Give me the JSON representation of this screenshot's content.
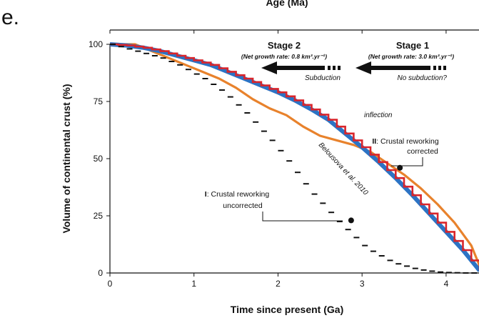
{
  "panel_label": "e.",
  "top_axis_title": "Age (Ma)",
  "chart_data": {
    "type": "line",
    "xlabel": "Time since present (Ga)",
    "ylabel": "Volume of continental crust (%)",
    "xlim": [
      0,
      4.4
    ],
    "ylim": [
      0,
      100
    ],
    "x_ticks": [
      "0",
      "1",
      "2",
      "3",
      "4"
    ],
    "y_ticks": [
      "0",
      "25",
      "50",
      "75",
      "100"
    ],
    "grid": false,
    "series": [
      {
        "name": "Belousova et al. 2010",
        "color": "#e8822c",
        "x": [
          0,
          0.3,
          0.5,
          0.7,
          0.9,
          1.1,
          1.3,
          1.5,
          1.7,
          1.9,
          2.1,
          2.3,
          2.5,
          2.7,
          2.9,
          3.1,
          3.3,
          3.5,
          3.7,
          3.9,
          4.1,
          4.3,
          4.4
        ],
        "y": [
          100,
          100,
          97,
          94,
          91,
          88,
          85,
          81,
          76,
          72,
          69,
          64,
          60,
          58,
          56,
          53,
          48,
          43,
          37,
          30,
          22,
          12,
          3
        ]
      },
      {
        "name": "II: Crustal reworking corrected",
        "color": "#2c73c4",
        "x": [
          0,
          0.2,
          0.4,
          0.6,
          0.8,
          1.0,
          1.2,
          1.4,
          1.6,
          1.8,
          2.0,
          2.2,
          2.4,
          2.6,
          2.8,
          3.0,
          3.2,
          3.4,
          3.6,
          3.8,
          4.0,
          4.2,
          4.4
        ],
        "y": [
          100,
          99.5,
          98.5,
          97,
          95,
          93,
          91,
          88,
          85,
          82,
          79,
          75.5,
          71.5,
          67,
          61,
          55,
          48.5,
          41.5,
          34,
          26,
          18,
          10,
          1
        ]
      },
      {
        "name": "I: Crustal reworking uncorrected",
        "color": "#111111",
        "x": [
          0,
          0.1,
          0.2,
          0.3,
          0.4,
          0.5,
          0.6,
          0.7,
          0.8,
          0.9,
          1.0,
          1.1,
          1.2,
          1.3,
          1.4,
          1.5,
          1.6,
          1.7,
          1.8,
          1.9,
          2.0,
          2.1,
          2.2,
          2.3,
          2.4,
          2.5,
          2.6,
          2.7,
          2.8,
          2.9,
          3.0,
          3.1,
          3.2,
          3.3,
          3.4,
          3.5,
          3.6,
          3.7,
          3.8,
          3.9,
          4.0,
          4.1,
          4.2,
          4.3,
          4.4
        ],
        "y": [
          100,
          99,
          98,
          97,
          96,
          95,
          94,
          92.5,
          91,
          89,
          87,
          85,
          82.5,
          80,
          77,
          73.5,
          70,
          66,
          62,
          58,
          53.5,
          49,
          44,
          39,
          34.5,
          30.5,
          26.5,
          22.5,
          19,
          15.5,
          12,
          9.5,
          7.5,
          5.5,
          4,
          3,
          2,
          1.3,
          0.8,
          0.4,
          0.2,
          0.1,
          0,
          0,
          0
        ]
      }
    ],
    "annotations": {
      "stage2_title": "Stage 2",
      "stage2_rate": "(Net growth rate: 0.8 km³.yr⁻¹)",
      "stage2_note": "Subduction",
      "stage1_title": "Stage 1",
      "stage1_rate": "(Net growth rate: 3.0 km³.yr⁻¹)",
      "stage1_note": "No subduction?",
      "inflection": "inflection",
      "label_II_num": "II",
      "label_II_line1": ": Crustal reworking",
      "label_II_line2": "corrected",
      "label_I_num": "I",
      "label_I_line1": ": Crustal reworking",
      "label_I_line2": "uncorrected",
      "belousova": "Belousova et al. 2010",
      "point_II": {
        "x": 3.45,
        "y": 46
      },
      "point_I": {
        "x": 2.87,
        "y": 23
      }
    }
  }
}
